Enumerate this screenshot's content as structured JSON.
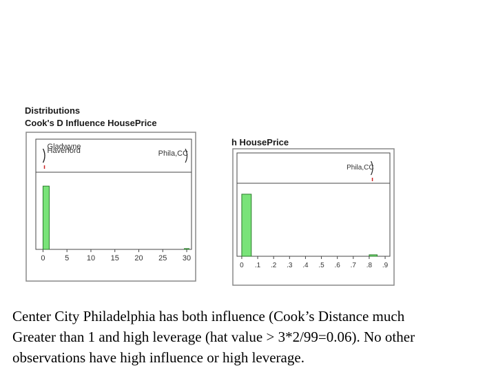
{
  "heading": {
    "line1": "Distributions",
    "line2": "Cook's D Influence HousePrice",
    "line3": "h HousePrice"
  },
  "chart_data": [
    {
      "type": "bar",
      "title": "Cook's D Influence HousePrice",
      "x_ticks": [
        "0",
        "5",
        "10",
        "15",
        "20",
        "25",
        "30"
      ],
      "xlim": [
        -1.5,
        31
      ],
      "bins": [
        {
          "x0": 0,
          "x1": 1.3,
          "height": 0.82
        },
        {
          "x0": 29.5,
          "x1": 30.5,
          "height": 0.01
        }
      ],
      "outlier_labels": [
        "Gladwyne",
        "Haverford",
        "Phila,CC"
      ],
      "outlier_values": [
        0.3,
        0.3,
        30
      ],
      "grid": false
    },
    {
      "type": "bar",
      "title": "h HousePrice",
      "x_ticks": [
        "0",
        ".1",
        ".2",
        ".3",
        ".4",
        ".5",
        ".6",
        ".7",
        ".8",
        ".9"
      ],
      "xlim": [
        -0.03,
        0.93
      ],
      "bins": [
        {
          "x0": 0,
          "x1": 0.06,
          "height": 0.85
        },
        {
          "x0": 0.8,
          "x1": 0.85,
          "height": 0.02
        }
      ],
      "outlier_labels": [
        "Phila,CC"
      ],
      "outlier_values": [
        0.82
      ],
      "grid": false
    }
  ],
  "caption": {
    "line1": "Center City Philadelphia has both influence (Cook’s Distance much",
    "line2": "Greater than 1 and high leverage (hat value > 3*2/99=0.06).  No other",
    "line3": "observations have high influence or high leverage."
  },
  "colors": {
    "bar_fill": "#79e379",
    "bar_stroke": "#2a7a2a",
    "frame": "#444444",
    "outlier_mark": "#cc2222",
    "text": "#333333"
  }
}
